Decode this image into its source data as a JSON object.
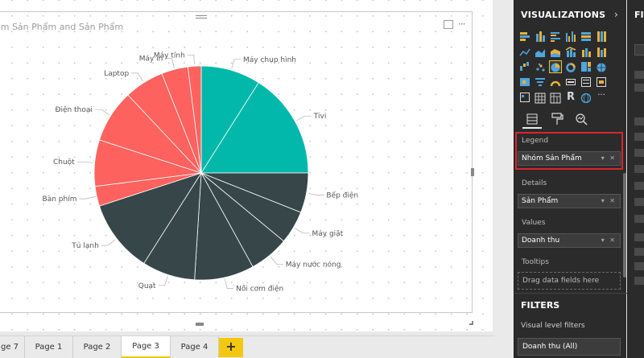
{
  "canvas": {
    "chart_title": "óm Sản Phẩm and Sản Phẩm",
    "focus_icon": "focus-mode-icon",
    "more_icon": "more-options-icon"
  },
  "chart_data": {
    "type": "pie",
    "title": "óm Sản Phẩm and Sản Phẩm",
    "legend": "Nhóm Sản Phẩm",
    "details": "Sản Phẩm",
    "values_field": "Doanh thu",
    "group_colors": {
      "teal": "#01b8aa",
      "dark": "#374649",
      "red": "#fd625e"
    },
    "slices": [
      {
        "label": "Máy chụp hình",
        "group": "teal",
        "value": 9
      },
      {
        "label": "Tivi",
        "group": "teal",
        "value": 16
      },
      {
        "label": "Bếp điện",
        "group": "dark",
        "value": 6
      },
      {
        "label": "Máy giặt",
        "group": "dark",
        "value": 5
      },
      {
        "label": "Máy nước nóng",
        "group": "dark",
        "value": 6
      },
      {
        "label": "Nồi cơm điện",
        "group": "dark",
        "value": 9
      },
      {
        "label": "Quạt",
        "group": "dark",
        "value": 8
      },
      {
        "label": "Tủ lạnh",
        "group": "dark",
        "value": 11
      },
      {
        "label": "Bàn phím",
        "group": "red",
        "value": 3
      },
      {
        "label": "Chuột",
        "group": "red",
        "value": 7
      },
      {
        "label": "Điện thoại",
        "group": "red",
        "value": 8
      },
      {
        "label": "Laptop",
        "group": "red",
        "value": 6
      },
      {
        "label": "Máy in",
        "group": "red",
        "value": 4
      },
      {
        "label": "Máy tính",
        "group": "red",
        "value": 2
      }
    ]
  },
  "tabs": [
    {
      "label": "ge 7",
      "active": false
    },
    {
      "label": "Page 1",
      "active": false
    },
    {
      "label": "Page 2",
      "active": false
    },
    {
      "label": "Page 3",
      "active": true
    },
    {
      "label": "Page 4",
      "active": false
    }
  ],
  "tab_add_label": "+",
  "visualizations": {
    "title": "VISUALIZATIONS",
    "chevron": "›",
    "r_glyph": "R",
    "more_glyph": "···",
    "fields_label": "Fields",
    "format_label": "Format",
    "analytics_label": "Analytics",
    "wells": {
      "legend": {
        "label": "Legend",
        "value": "Nhóm Sản Phẩm"
      },
      "details": {
        "label": "Details",
        "value": "Sản Phẩm"
      },
      "values": {
        "label": "Values",
        "value": "Doanh thu"
      },
      "tooltips": {
        "label": "Tooltips",
        "placeholder": "Drag data fields here"
      }
    },
    "well_controls": "▾ ✕",
    "highlight_color": "#d9262c"
  },
  "filters": {
    "title": "FILTERS",
    "visual_level_label": "Visual level filters",
    "visual_level_item": "Doanh thu (All)"
  },
  "fields_pane": {
    "title": "FI"
  }
}
